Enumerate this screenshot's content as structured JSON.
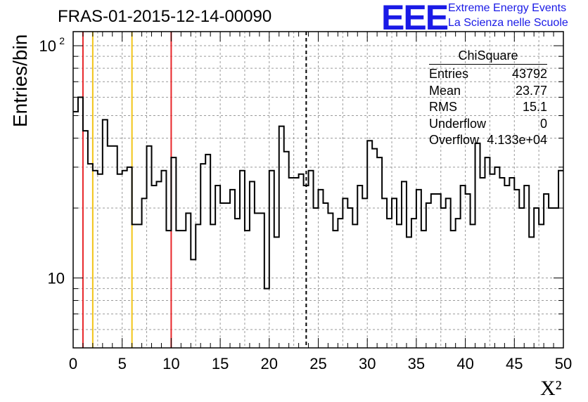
{
  "header": {
    "title": "FRAS-01-2015-12-14-00090",
    "logo_text": "EEE",
    "logo_line_1": "Extreme Energy Events",
    "logo_line_2": "La Scienza nelle Scuole"
  },
  "stats": {
    "title": "ChiSquare",
    "rows": [
      {
        "label": "Entries",
        "value": "43792"
      },
      {
        "label": "Mean",
        "value": "23.77"
      },
      {
        "label": "RMS",
        "value": "15.1"
      },
      {
        "label": "Underflow",
        "value": "0"
      },
      {
        "label": "Overflow",
        "value": "4.133e+04"
      }
    ]
  },
  "colors": {
    "red_line": "#e8262a",
    "yellow_line": "#f2c518",
    "grid": "#9a9a9a",
    "histogram": "#000000"
  },
  "chart_data": {
    "type": "histogram",
    "xlabel": "X²",
    "ylabel": "Entries/bin",
    "xlim": [
      0,
      50
    ],
    "ylim": [
      5,
      115
    ],
    "yscale": "log",
    "grid": true,
    "xticks": [
      0,
      5,
      10,
      15,
      20,
      25,
      30,
      35,
      40,
      45,
      50
    ],
    "yticks": [
      {
        "value": 10,
        "label": "10"
      },
      {
        "value": 100,
        "label": "10",
        "exponent": "2"
      }
    ],
    "bin_width": 0.5,
    "values": [
      52,
      60,
      43,
      31,
      29,
      28,
      48,
      37,
      37,
      28,
      29,
      30,
      17,
      17,
      22,
      37,
      25,
      26,
      29,
      16,
      33,
      16,
      16,
      19,
      12,
      17,
      31,
      34,
      17,
      25,
      21,
      21,
      24,
      18,
      29,
      16,
      26,
      19,
      19,
      9,
      29,
      15,
      45,
      35,
      27,
      27,
      28,
      25,
      29,
      20,
      24,
      21,
      19,
      16,
      18,
      22,
      20,
      17,
      25,
      22,
      39,
      36,
      33,
      22,
      18,
      22,
      17,
      26,
      15,
      18,
      24,
      16,
      21,
      23,
      23,
      20,
      22,
      16,
      18,
      25,
      23,
      17,
      38,
      27,
      33,
      28,
      30,
      27,
      25,
      27,
      24,
      20,
      25,
      15,
      20,
      17,
      23,
      20,
      20,
      29
    ],
    "vertical_lines": [
      {
        "x": 1,
        "color": "red",
        "style": "solid"
      },
      {
        "x": 2,
        "color": "yellow",
        "style": "solid"
      },
      {
        "x": 6,
        "color": "yellow",
        "style": "solid"
      },
      {
        "x": 10,
        "color": "red",
        "style": "solid"
      },
      {
        "x": 23.77,
        "color": "black",
        "style": "dashed"
      }
    ]
  }
}
